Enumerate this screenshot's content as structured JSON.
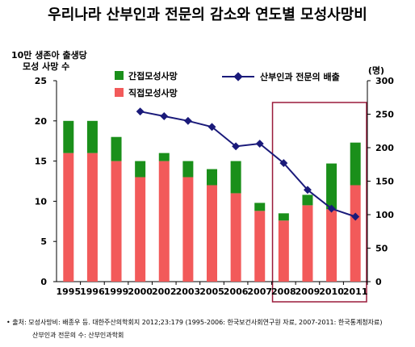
{
  "chart_data": {
    "type": "bar+line",
    "title": "우리나라 산부인과 전문의 감소와 연도별 모성사망비",
    "left_axis_label_line1": "10만 생존아 출생당",
    "left_axis_label_line2": "모성 사망 수",
    "right_axis_label": "(명)",
    "categories": [
      "1995",
      "1996",
      "1999",
      "2000",
      "2002",
      "2003",
      "2005",
      "2006",
      "2007",
      "2008",
      "2009",
      "2010",
      "2011"
    ],
    "left_ylim": [
      0,
      25
    ],
    "left_ticks": [
      "0",
      "5",
      "10",
      "15",
      "20",
      "25"
    ],
    "right_ylim": [
      0,
      300
    ],
    "right_ticks": [
      "0",
      "50",
      "100",
      "150",
      "200",
      "250",
      "300"
    ],
    "series": [
      {
        "name": "직접모성사망",
        "axis": "left",
        "color": "#f25a5a",
        "values": [
          16,
          16,
          15,
          13,
          15,
          13,
          12,
          11,
          8.8,
          7.6,
          9.5,
          9.0,
          12.0
        ]
      },
      {
        "name": "간접모성사망",
        "axis": "left",
        "color": "#1a8f1a",
        "values": [
          4,
          4,
          3,
          2,
          1,
          2,
          2,
          4,
          1.0,
          0.9,
          1.3,
          5.7,
          5.3
        ]
      },
      {
        "name": "산부인과 전문의 배출",
        "axis": "right",
        "color": "#1a1a7a",
        "points": [
          [
            "2000",
            254
          ],
          [
            "2002",
            247
          ],
          [
            "2003",
            240
          ],
          [
            "2005",
            231
          ],
          [
            "2006",
            202
          ],
          [
            "2007",
            206
          ],
          [
            "2008",
            177
          ],
          [
            "2009",
            137
          ],
          [
            "2010",
            109
          ],
          [
            "2011",
            97
          ]
        ]
      }
    ],
    "highlight_range": [
      "2008",
      "2011"
    ],
    "grid": false,
    "legend_placement": "top"
  },
  "notes": {
    "line1": "• 출처: 모성사망비: 배종우 등. 대한주산의학회지 2012;23:179 (1995-2006: 한국보건사회연구원 자료, 2007-2011: 한국통계청자료)",
    "line2": "산부인과 전문의 수: 산부인과학회"
  }
}
